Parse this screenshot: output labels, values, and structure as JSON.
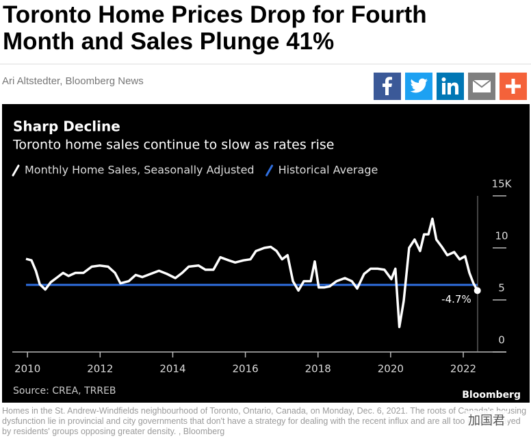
{
  "header": {
    "title_lines": [
      "Toronto Home Prices Drop for Fourth",
      "Month and Sales Plunge 41%"
    ],
    "byline": "Ari Altstedter, Bloomberg News"
  },
  "chart_data": {
    "type": "line",
    "title": "Sharp Decline",
    "subtitle": "Toronto home sales continue to slow as rates rise",
    "series": [
      {
        "name": "Monthly Home Sales, Seasonally Adjusted",
        "color": "#ffffff",
        "x": [
          2009.96,
          2010.11,
          2010.23,
          2010.34,
          2010.49,
          2010.64,
          2010.83,
          2010.98,
          2011.13,
          2011.32,
          2011.54,
          2011.77,
          2011.99,
          2012.22,
          2012.41,
          2012.56,
          2012.79,
          2012.98,
          2013.16,
          2013.39,
          2013.62,
          2013.84,
          2014.07,
          2014.26,
          2014.44,
          2014.71,
          2014.9,
          2015.12,
          2015.31,
          2015.54,
          2015.72,
          2015.95,
          2016.14,
          2016.29,
          2016.52,
          2016.7,
          2016.86,
          2017.01,
          2017.16,
          2017.31,
          2017.46,
          2017.61,
          2017.8,
          2017.91,
          2018.02,
          2018.17,
          2018.32,
          2018.51,
          2018.74,
          2018.93,
          2019.08,
          2019.27,
          2019.45,
          2019.64,
          2019.83,
          2020.02,
          2020.13,
          2020.24,
          2020.36,
          2020.51,
          2020.66,
          2020.81,
          2020.92,
          2021.04,
          2021.15,
          2021.26,
          2021.41,
          2021.56,
          2021.75,
          2021.9,
          2022.05,
          2022.17,
          2022.28,
          2022.39
        ],
        "values": [
          8.95,
          8.8,
          7.8,
          6.5,
          6.0,
          6.7,
          7.2,
          7.6,
          7.3,
          7.6,
          7.6,
          8.2,
          8.3,
          8.2,
          7.6,
          6.6,
          6.8,
          7.4,
          7.2,
          7.5,
          7.8,
          7.5,
          7.1,
          7.6,
          8.2,
          8.3,
          7.9,
          7.9,
          9.1,
          8.8,
          8.6,
          8.8,
          8.9,
          9.7,
          10.0,
          10.1,
          9.7,
          8.9,
          9.3,
          6.8,
          5.9,
          6.8,
          6.8,
          8.7,
          6.2,
          6.2,
          6.3,
          6.8,
          7.1,
          6.8,
          6.1,
          7.5,
          8.0,
          8.0,
          7.9,
          7.0,
          8.0,
          2.4,
          4.9,
          10.0,
          10.8,
          9.7,
          11.3,
          11.3,
          12.8,
          10.8,
          10.1,
          9.3,
          9.6,
          8.9,
          9.2,
          7.6,
          6.6,
          5.9
        ]
      },
      {
        "name": "Historical Average",
        "color": "#2f6fe0",
        "x": [
          2009.96,
          2022.39
        ],
        "values": [
          6.45,
          6.45
        ]
      }
    ],
    "xlim": [
      2009.62,
      2022.81
    ],
    "xticks": [
      2010,
      2012,
      2014,
      2016,
      2018,
      2020,
      2022
    ],
    "ylim": [
      0,
      15
    ],
    "yticks": [
      0,
      5,
      10,
      {
        "value": 15,
        "label": "15K"
      }
    ],
    "annotation": "-4.7%",
    "source": "Source: CREA, TRREB",
    "brand": "Bloomberg"
  },
  "caption": "Homes in the St. Andrew-Windfields neighbourhood of Toronto, Ontario, Canada, on Monday, Dec. 6, 2021. The roots of Canada's housing dysfunction lie in provincial and city governments that don't have a strategy for dealing with the recent influx and are all too easily swayed by residents' groups opposing greater density. , Bloomberg",
  "watermark": "加国君"
}
